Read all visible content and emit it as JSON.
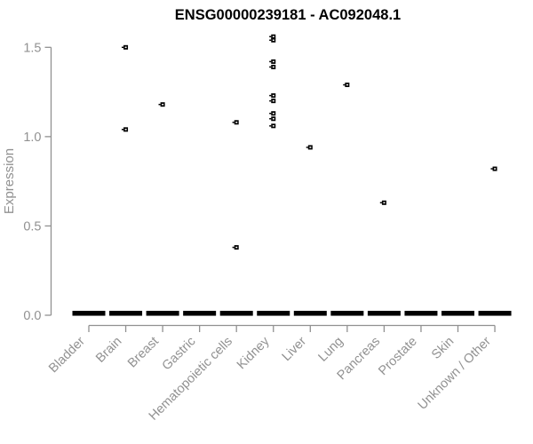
{
  "chart_data": {
    "type": "scatter",
    "title": "ENSG00000239181 - AC092048.1",
    "xlabel": "",
    "ylabel": "Expression",
    "ylim": [
      0.0,
      1.5
    ],
    "ytick_labels": [
      "0.0",
      "0.5",
      "1.0",
      "1.5"
    ],
    "ytick_values": [
      0.0,
      0.5,
      1.0,
      1.5
    ],
    "grid": false,
    "legend": false,
    "categories": [
      "Bladder",
      "Brain",
      "Breast",
      "Gastric",
      "Hematopoietic cells",
      "Kidney",
      "Liver",
      "Lung",
      "Pancreas",
      "Prostate",
      "Skin",
      "Unknown / Other"
    ],
    "series": [
      {
        "name": "Bladder",
        "zero_median_bar": 0.0,
        "outlier_points": []
      },
      {
        "name": "Brain",
        "zero_median_bar": 0.0,
        "outlier_points": [
          1.5,
          1.04
        ]
      },
      {
        "name": "Breast",
        "zero_median_bar": 0.0,
        "outlier_points": [
          1.18
        ]
      },
      {
        "name": "Gastric",
        "zero_median_bar": 0.0,
        "outlier_points": []
      },
      {
        "name": "Hematopoietic cells",
        "zero_median_bar": 0.0,
        "outlier_points": [
          1.08,
          0.38
        ]
      },
      {
        "name": "Kidney",
        "zero_median_bar": 0.0,
        "outlier_points": [
          1.56,
          1.54,
          1.42,
          1.39,
          1.23,
          1.2,
          1.13,
          1.1,
          1.06
        ]
      },
      {
        "name": "Liver",
        "zero_median_bar": 0.0,
        "outlier_points": [
          0.94
        ]
      },
      {
        "name": "Lung",
        "zero_median_bar": 0.0,
        "outlier_points": [
          1.29
        ]
      },
      {
        "name": "Pancreas",
        "zero_median_bar": 0.0,
        "outlier_points": [
          0.63
        ]
      },
      {
        "name": "Prostate",
        "zero_median_bar": 0.0,
        "outlier_points": []
      },
      {
        "name": "Skin",
        "zero_median_bar": 0.0,
        "outlier_points": []
      },
      {
        "name": "Unknown / Other",
        "zero_median_bar": 0.0,
        "outlier_points": [
          0.82
        ]
      }
    ]
  },
  "colors": {
    "marker": "#000000",
    "marker_center": "#ffffff",
    "median_bar": "#000000",
    "axis": "#919191",
    "axis_text": "#919191",
    "title": "#000000",
    "background": "#ffffff"
  }
}
